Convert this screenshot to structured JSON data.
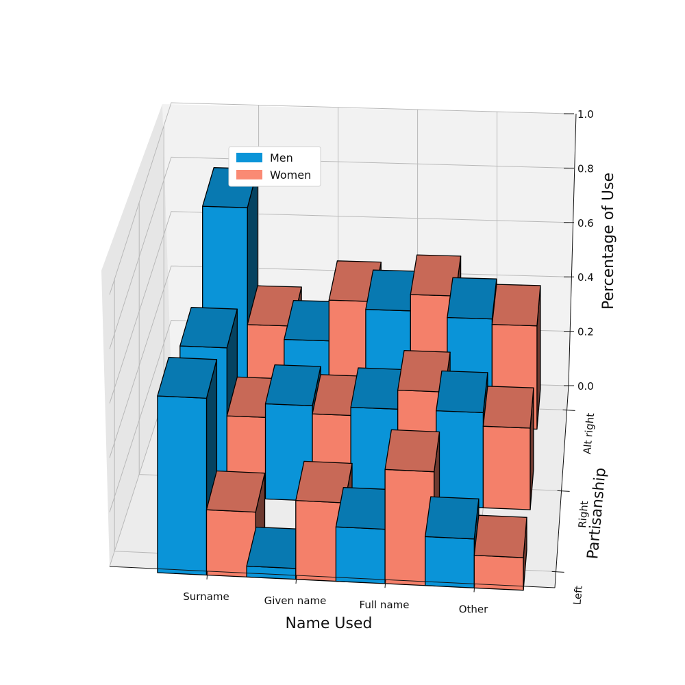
{
  "chart_data": {
    "type": "bar",
    "subtype": "3d-bar",
    "title": "",
    "xlabel": "Name Used",
    "ylabel": "Partisanship",
    "zlabel": "Percentage of Use",
    "categories": [
      "Surname",
      "Given name",
      "Full name",
      "Other"
    ],
    "groups": [
      "Left",
      "Right",
      "Alt right"
    ],
    "zlim": [
      0.0,
      1.0
    ],
    "zticks": [
      "0.0",
      "0.2",
      "0.4",
      "0.6",
      "0.8",
      "1.0"
    ],
    "grid": true,
    "legend_position": "upper-left",
    "series": [
      {
        "name": "Men",
        "color": "#0a94d8",
        "values": {
          "Left": [
            0.65,
            0.04,
            0.2,
            0.18
          ],
          "Right": [
            0.55,
            0.35,
            0.35,
            0.35
          ],
          "Alt right": [
            0.78,
            0.3,
            0.42,
            0.4
          ]
        }
      },
      {
        "name": "Women",
        "color": "#f4806a",
        "values": {
          "Left": [
            0.24,
            0.29,
            0.42,
            0.12
          ],
          "Right": [
            0.3,
            0.32,
            0.42,
            0.3
          ],
          "Alt right": [
            0.35,
            0.45,
            0.48,
            0.38
          ]
        }
      }
    ]
  }
}
